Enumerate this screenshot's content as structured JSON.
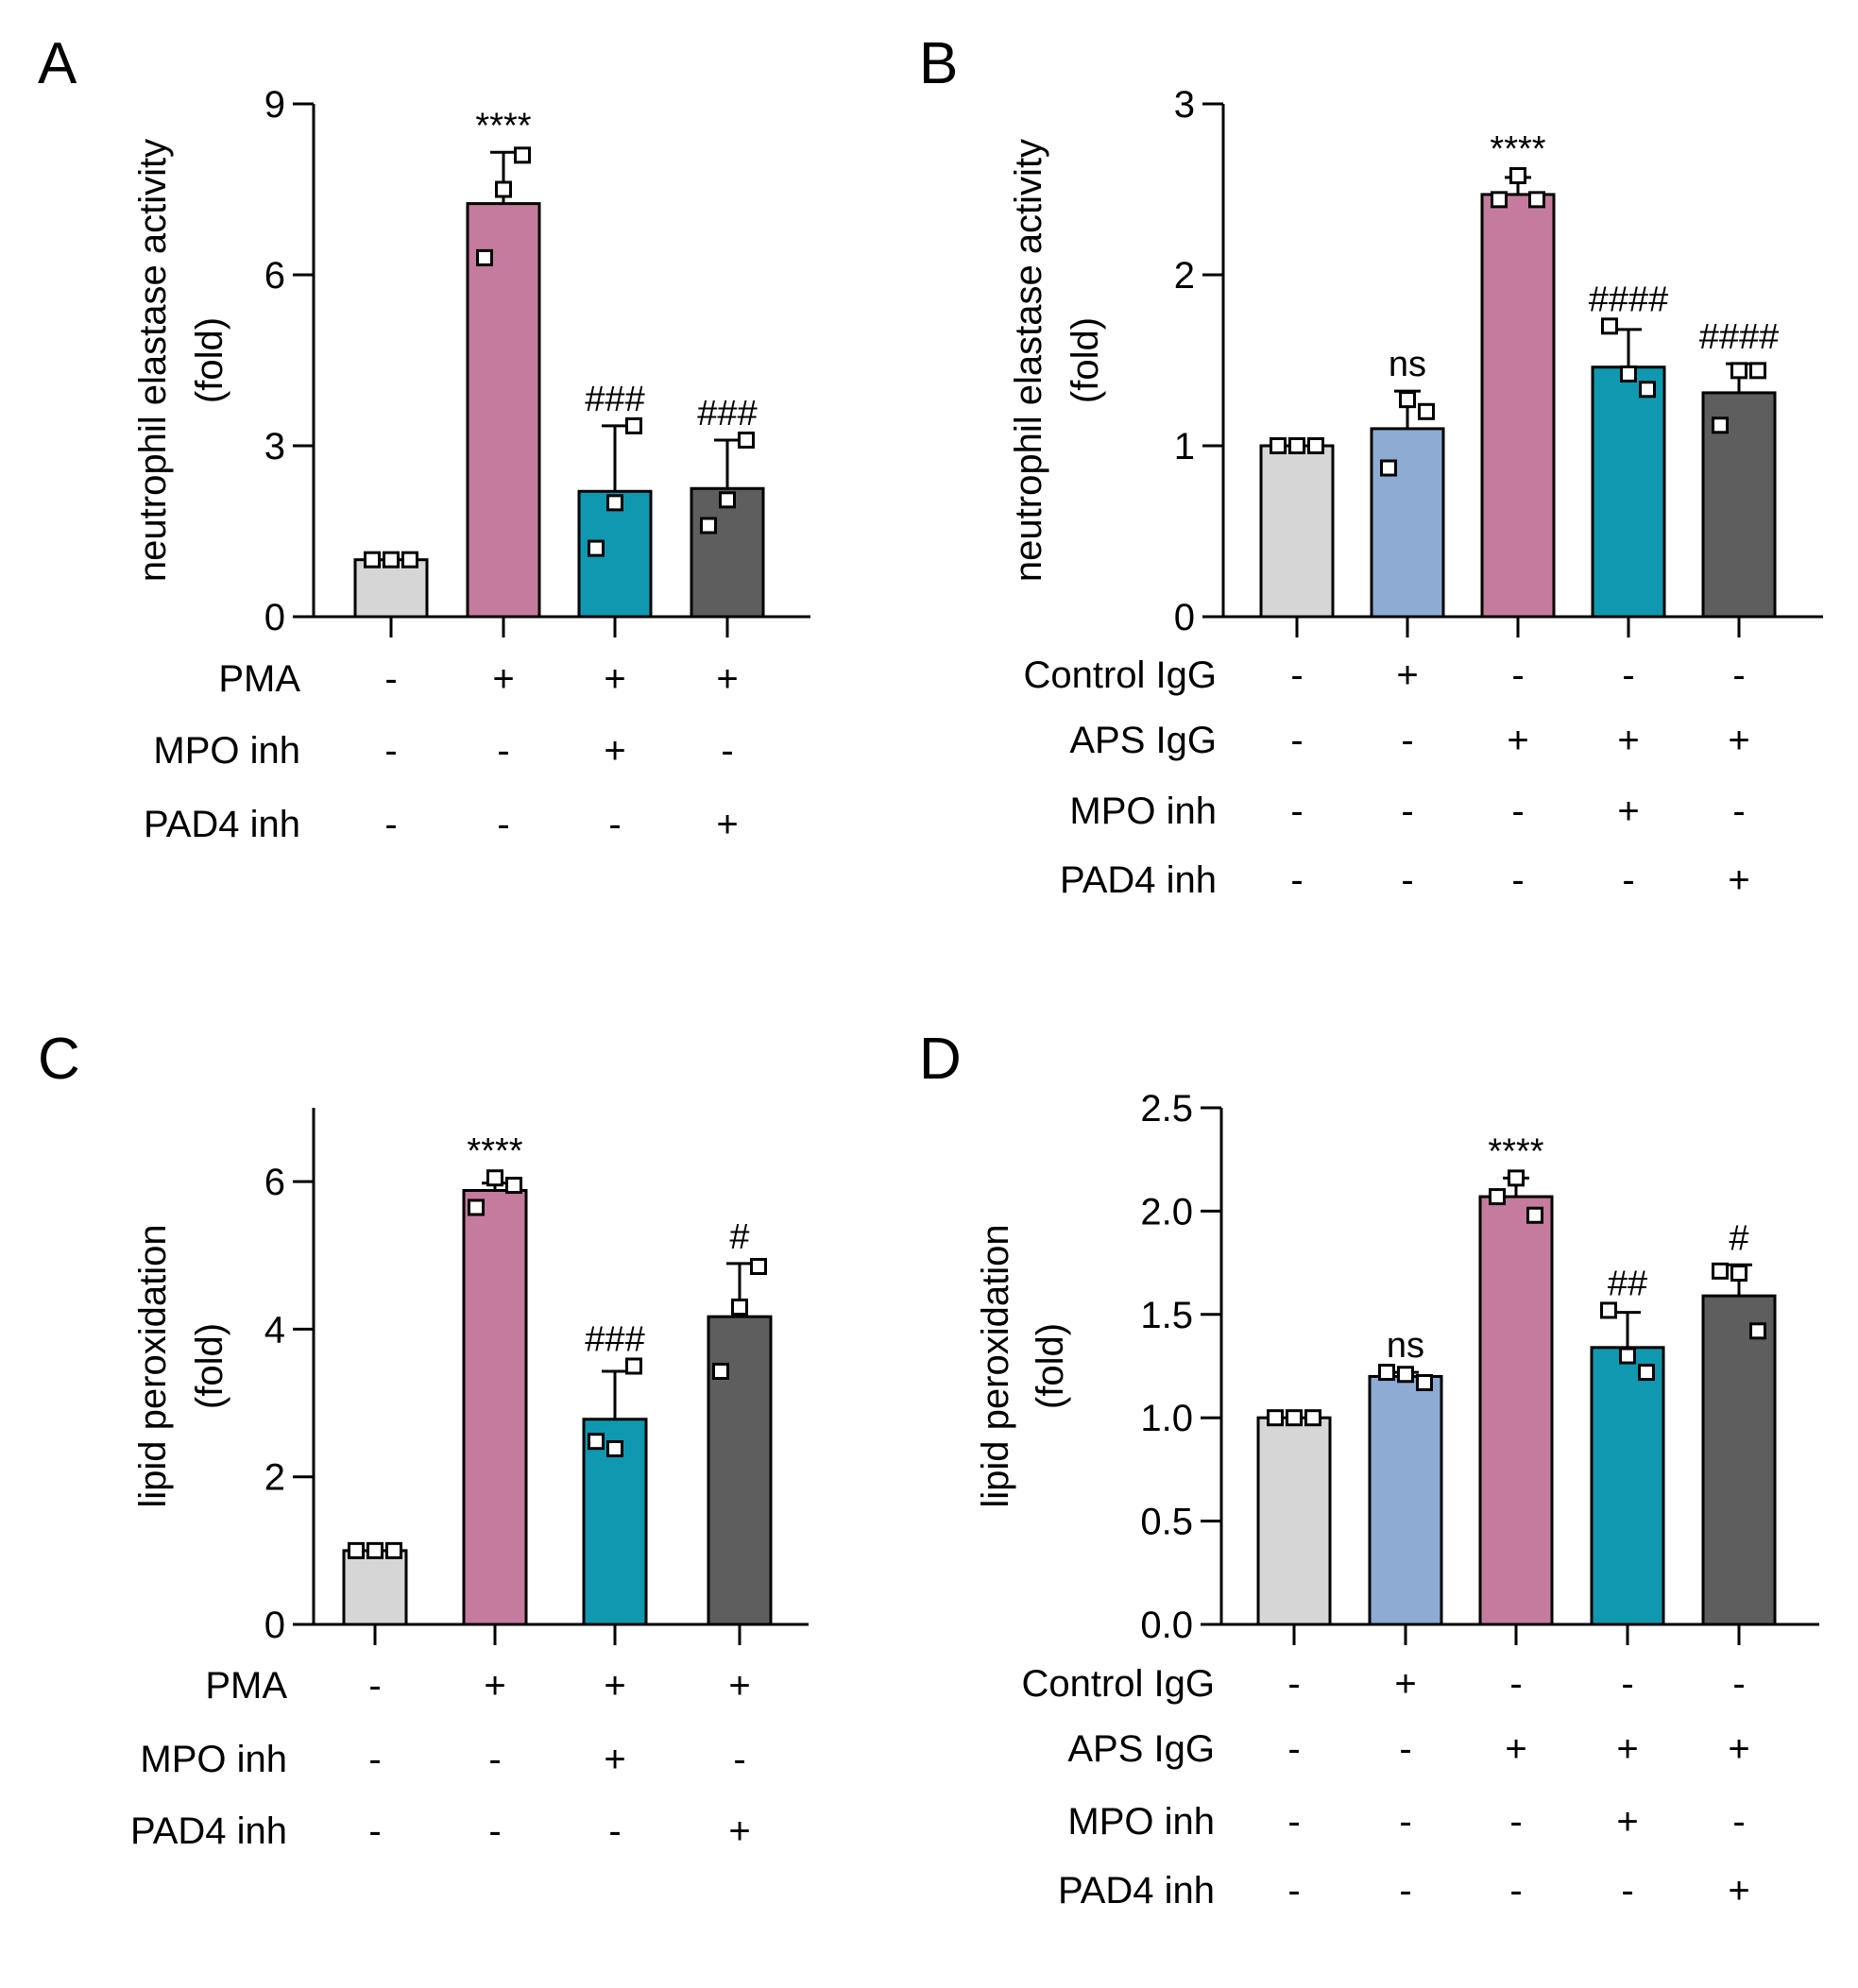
{
  "colors": {
    "control": "#d6d6d6",
    "control_igg": "#8eacd3",
    "stimulus": "#c57b9d",
    "mpo_inh": "#1198b1",
    "pad4_inh": "#5e5e5e",
    "axis": "#000000"
  },
  "chart_data": [
    {
      "panel": "A",
      "type": "bar",
      "ylabel": [
        "neutrophil elastase activity",
        "(fold)"
      ],
      "ylim": [
        0,
        9
      ],
      "yticks": [
        0,
        3,
        6,
        9
      ],
      "categories": [
        "PMA -",
        "PMA +",
        "PMA + MPO inh",
        "PMA + PAD4 inh"
      ],
      "color_keys": [
        "control",
        "stimulus",
        "mpo_inh",
        "pad4_inh"
      ],
      "values": [
        1.0,
        7.25,
        2.2,
        2.25
      ],
      "errors": [
        0.0,
        0.9,
        1.15,
        0.85
      ],
      "points": [
        [
          1.0,
          1.0,
          1.0
        ],
        [
          6.3,
          7.5,
          8.1
        ],
        [
          1.2,
          2.0,
          3.35
        ],
        [
          1.6,
          2.05,
          3.1
        ]
      ],
      "significance": [
        "",
        "****",
        "###",
        "###"
      ],
      "treatments": [
        {
          "label": "PMA",
          "signs": [
            "-",
            "+",
            "+",
            "+"
          ]
        },
        {
          "label": "MPO inh",
          "signs": [
            "-",
            "-",
            "+",
            "-"
          ]
        },
        {
          "label": "PAD4 inh",
          "signs": [
            "-",
            "-",
            "-",
            "+"
          ]
        }
      ]
    },
    {
      "panel": "B",
      "type": "bar",
      "ylabel": [
        "neutrophil elastase activity",
        "(fold)"
      ],
      "ylim": [
        0,
        3
      ],
      "yticks": [
        0,
        1,
        2,
        3
      ],
      "categories": [
        "Control",
        "Control IgG",
        "APS IgG",
        "APS IgG + MPO inh",
        "APS IgG + PAD4 inh"
      ],
      "color_keys": [
        "control",
        "control_igg",
        "stimulus",
        "mpo_inh",
        "pad4_inh"
      ],
      "values": [
        1.0,
        1.1,
        2.47,
        1.46,
        1.31
      ],
      "errors": [
        0.0,
        0.22,
        0.1,
        0.22,
        0.17
      ],
      "points": [
        [
          1.0,
          1.0,
          1.0
        ],
        [
          0.87,
          1.27,
          1.2
        ],
        [
          2.44,
          2.58,
          2.44
        ],
        [
          1.7,
          1.42,
          1.33
        ],
        [
          1.12,
          1.44,
          1.44
        ]
      ],
      "significance": [
        "",
        "ns",
        "****",
        "####",
        "####"
      ],
      "treatments": [
        {
          "label": "Control IgG",
          "signs": [
            "-",
            "+",
            "-",
            "-",
            "-"
          ]
        },
        {
          "label": "APS IgG",
          "signs": [
            "-",
            "-",
            "+",
            "+",
            "+"
          ]
        },
        {
          "label": "MPO inh",
          "signs": [
            "-",
            "-",
            "-",
            "+",
            "-"
          ]
        },
        {
          "label": "PAD4 inh",
          "signs": [
            "-",
            "-",
            "-",
            "-",
            "+"
          ]
        }
      ]
    },
    {
      "panel": "C",
      "type": "bar",
      "ylabel": [
        "lipid peroxidation",
        "(fold)"
      ],
      "ylim": [
        0,
        7
      ],
      "yticks": [
        0,
        2,
        4,
        6
      ],
      "categories": [
        "PMA -",
        "PMA +",
        "PMA + MPO inh",
        "PMA + PAD4 inh"
      ],
      "color_keys": [
        "control",
        "stimulus",
        "mpo_inh",
        "pad4_inh"
      ],
      "values": [
        1.0,
        5.88,
        2.78,
        4.17
      ],
      "errors": [
        0.0,
        0.1,
        0.65,
        0.72
      ],
      "points": [
        [
          1.0,
          1.0,
          1.0
        ],
        [
          5.65,
          6.05,
          5.95
        ],
        [
          2.48,
          2.38,
          3.5
        ],
        [
          3.43,
          4.3,
          4.85
        ]
      ],
      "significance": [
        "",
        "****",
        "###",
        "#"
      ],
      "treatments": [
        {
          "label": "PMA",
          "signs": [
            "-",
            "+",
            "+",
            "+"
          ]
        },
        {
          "label": "MPO inh",
          "signs": [
            "-",
            "-",
            "+",
            "-"
          ]
        },
        {
          "label": "PAD4 inh",
          "signs": [
            "-",
            "-",
            "-",
            "+"
          ]
        }
      ]
    },
    {
      "panel": "D",
      "type": "bar",
      "ylabel": [
        "lipid peroxidation",
        "(fold)"
      ],
      "ylim": [
        0,
        2.5
      ],
      "yticks": [
        0.0,
        0.5,
        1.0,
        1.5,
        2.0,
        2.5
      ],
      "ytick_labels": [
        "0.0",
        "0.5",
        "1.0",
        "1.5",
        "2.0",
        "2.5"
      ],
      "categories": [
        "Control",
        "Control IgG",
        "APS IgG",
        "APS IgG + MPO inh",
        "APS IgG + PAD4 inh"
      ],
      "color_keys": [
        "control",
        "control_igg",
        "stimulus",
        "mpo_inh",
        "pad4_inh"
      ],
      "values": [
        1.0,
        1.2,
        2.07,
        1.34,
        1.59
      ],
      "errors": [
        0.0,
        0.02,
        0.09,
        0.17,
        0.15
      ],
      "points": [
        [
          1.0,
          1.0,
          1.0
        ],
        [
          1.22,
          1.21,
          1.17
        ],
        [
          2.07,
          2.16,
          1.98
        ],
        [
          1.52,
          1.3,
          1.22
        ],
        [
          1.71,
          1.7,
          1.42
        ]
      ],
      "significance": [
        "",
        "ns",
        "****",
        "##",
        "#"
      ],
      "treatments": [
        {
          "label": "Control IgG",
          "signs": [
            "-",
            "+",
            "-",
            "-",
            "-"
          ]
        },
        {
          "label": "APS IgG",
          "signs": [
            "-",
            "-",
            "+",
            "+",
            "+"
          ]
        },
        {
          "label": "MPO inh",
          "signs": [
            "-",
            "-",
            "-",
            "+",
            "-"
          ]
        },
        {
          "label": "PAD4 inh",
          "signs": [
            "-",
            "-",
            "-",
            "-",
            "+"
          ]
        }
      ]
    }
  ]
}
